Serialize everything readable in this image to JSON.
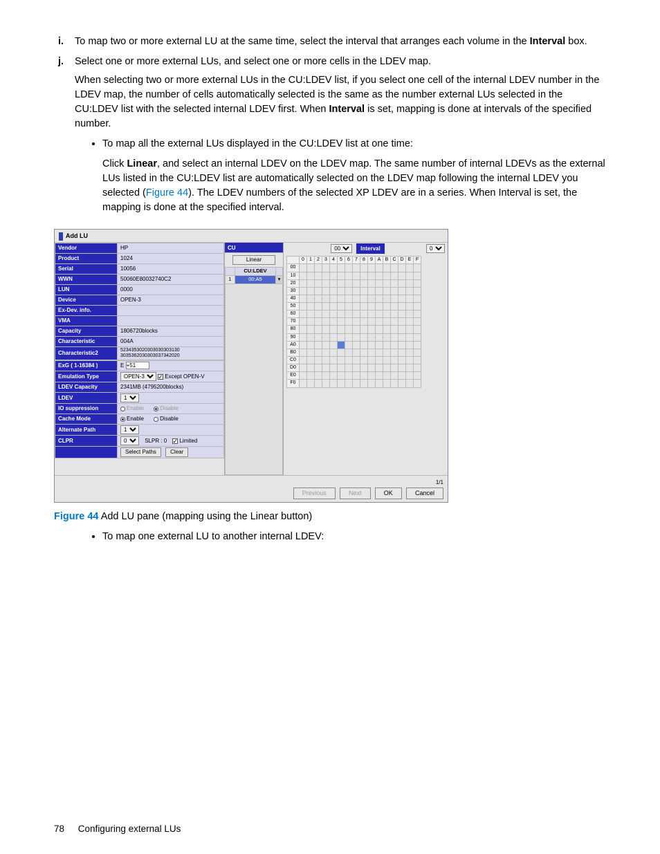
{
  "list": {
    "item_i": {
      "marker": "i.",
      "text_a": "To map two or more external LU at the same time, select the interval that arranges each volume in the ",
      "bold": "Interval",
      "text_b": " box."
    },
    "item_j": {
      "marker": "j.",
      "line1": "Select one or more external LUs, and select one or more cells in the LDEV map.",
      "para_a": "When selecting two or more external LUs in the CU:LDEV list, if you select one cell of the internal LDEV number in the LDEV map, the number of cells automatically selected is the same as the number external LUs selected in the CU:LDEV list with the selected internal LDEV first. When ",
      "para_bold": "Interval",
      "para_b": " is set, mapping is done at intervals of the specified number.",
      "bullet1": "To map all the external LUs displayed in the CU:LDEV list at one time:",
      "indent_a": "Click ",
      "indent_bold": "Linear",
      "indent_b": ", and select an internal LDEV on the LDEV map. The same number of internal LDEVs as the external LUs listed in the CU:LDEV list are automatically selected on the LDEV map following the internal LDEV you selected (",
      "figref": "Figure 44",
      "indent_c": "). The LDEV numbers of the selected XP LDEV are in a series. When Interval is set, the mapping is done at the specified interval.",
      "bullet2": "To map one external LU to another internal LDEV:"
    }
  },
  "figure": {
    "label": "Figure 44",
    "caption": "  Add LU pane (mapping using the Linear button)"
  },
  "panel": {
    "title": "Add LU",
    "props": [
      {
        "name": "Vendor",
        "val": "HP"
      },
      {
        "name": "Product",
        "val": "1024"
      },
      {
        "name": "Serial",
        "val": "10056"
      },
      {
        "name": "WWN",
        "val": "50060E80032740C2"
      },
      {
        "name": "LUN",
        "val": "0000"
      },
      {
        "name": "Device",
        "val": "OPEN-3"
      },
      {
        "name": "Ex-Dev. info.",
        "val": ""
      },
      {
        "name": "VMA",
        "val": ""
      },
      {
        "name": "Capacity",
        "val": "1806720blocks"
      },
      {
        "name": "Characteristic",
        "val": "004A"
      },
      {
        "name": "Characteristic2",
        "val": "5234353020303030303130 3035362030303037342020"
      }
    ],
    "exg": {
      "name": "ExG ( 1-16384 )",
      "prefix": "E",
      "val": "+51"
    },
    "emu": {
      "name": "Emulation Type",
      "sel": "OPEN-3",
      "chk": "Except OPEN-V"
    },
    "ldevcap": {
      "name": "LDEV Capacity",
      "val": "2341MB (4795200blocks)"
    },
    "ldev": {
      "name": "LDEV",
      "sel": "1"
    },
    "iosup": {
      "name": "IO suppression",
      "r1": "Enable",
      "r2": "Disable"
    },
    "cache": {
      "name": "Cache Mode",
      "r1": "Enable",
      "r2": "Disable"
    },
    "alt": {
      "name": "Alternate Path",
      "sel": "1"
    },
    "clpr": {
      "name": "CLPR",
      "sel": "0",
      "slpr": "SLPR : 0",
      "lim": "Limited"
    },
    "btn_select_paths": "Select Paths",
    "btn_clear": "Clear",
    "mid": {
      "head": "CU",
      "linear": "Linear",
      "col": "CU:LDEV",
      "row_idx": "1",
      "row_val": "00:A5"
    },
    "right": {
      "cu_sel": "00",
      "interval": "Interval",
      "int_sel": "0",
      "cols": [
        "0",
        "1",
        "2",
        "3",
        "4",
        "5",
        "6",
        "7",
        "8",
        "9",
        "A",
        "B",
        "C",
        "D",
        "E",
        "F"
      ],
      "rows": [
        "00",
        "10",
        "20",
        "30",
        "40",
        "50",
        "60",
        "70",
        "80",
        "90",
        "A0",
        "B0",
        "C0",
        "D0",
        "E0",
        "F0"
      ],
      "highlight_row": "A0",
      "highlight_col": "5"
    },
    "footer": {
      "count": "1/1",
      "prev": "Previous",
      "next": "Next",
      "ok": "OK",
      "cancel": "Cancel"
    }
  },
  "pagefoot": {
    "num": "78",
    "title": "Configuring external LUs"
  }
}
